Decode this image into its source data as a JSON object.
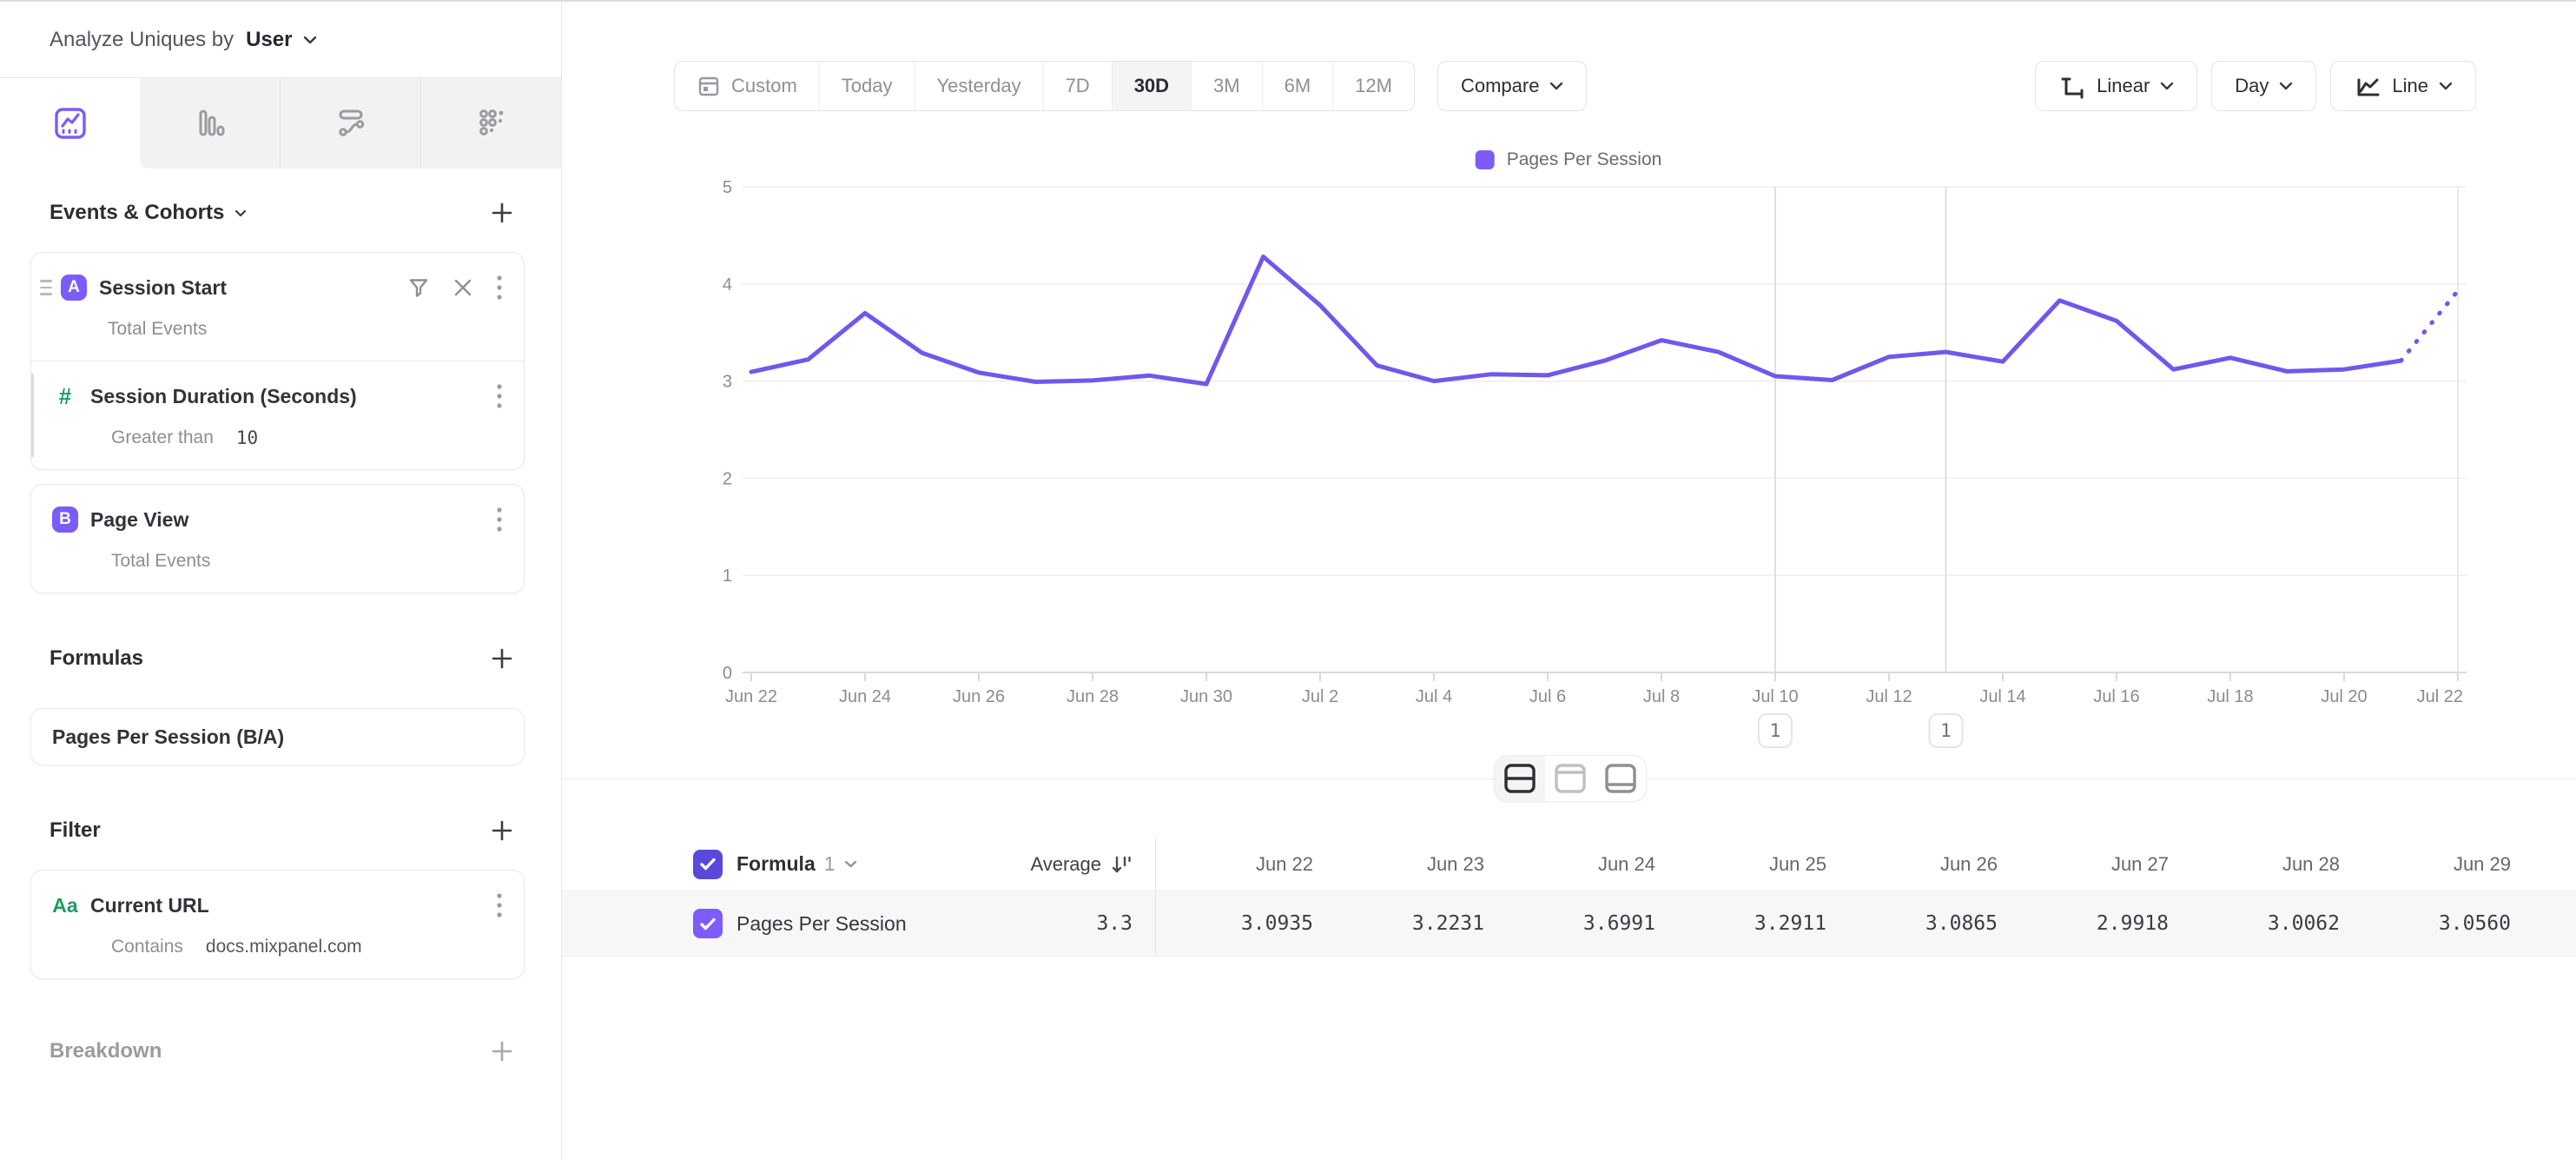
{
  "header": {
    "prefix": "Analyze Uniques by",
    "selector": "User"
  },
  "sidebar": {
    "sections": {
      "events": {
        "title": "Events & Cohorts"
      },
      "formulas": {
        "title": "Formulas"
      },
      "filter": {
        "title": "Filter"
      },
      "breakdown": {
        "title": "Breakdown"
      }
    },
    "event_items": [
      {
        "badge": "A",
        "title": "Session Start",
        "subtitle": "Total Events"
      },
      {
        "badge": "#",
        "title": "Session Duration (Seconds)",
        "operator": "Greater than",
        "operand": "10"
      },
      {
        "badge": "B",
        "title": "Page View",
        "subtitle": "Total Events"
      }
    ],
    "formula_items": [
      {
        "title": "Pages Per Session (B/A)"
      }
    ],
    "filter_items": [
      {
        "badge": "Aa",
        "title": "Current URL",
        "operator": "Contains",
        "operand": "docs.mixpanel.com"
      }
    ]
  },
  "toolbar": {
    "date_ranges": [
      "Custom",
      "Today",
      "Yesterday",
      "7D",
      "30D",
      "3M",
      "6M",
      "12M"
    ],
    "active_range": "30D",
    "compare_label": "Compare",
    "scale_label": "Linear",
    "interval_label": "Day",
    "chart_type_label": "Line"
  },
  "chart_data": {
    "type": "line",
    "legend": [
      "Pages Per Session"
    ],
    "legend_position": "top-center",
    "grid": "horizontal",
    "ylim": [
      0,
      5
    ],
    "yticks": [
      0,
      1,
      2,
      3,
      4,
      5
    ],
    "x": [
      "Jun 22",
      "Jun 23",
      "Jun 24",
      "Jun 25",
      "Jun 26",
      "Jun 27",
      "Jun 28",
      "Jun 29",
      "Jun 30",
      "Jul 1",
      "Jul 2",
      "Jul 3",
      "Jul 4",
      "Jul 5",
      "Jul 6",
      "Jul 7",
      "Jul 8",
      "Jul 9",
      "Jul 10",
      "Jul 11",
      "Jul 12",
      "Jul 13",
      "Jul 14",
      "Jul 15",
      "Jul 16",
      "Jul 17",
      "Jul 18",
      "Jul 19",
      "Jul 20",
      "Jul 21",
      "Jul 22"
    ],
    "x_tick_labels": [
      "Jun 22",
      "Jun 24",
      "Jun 26",
      "Jun 28",
      "Jun 30",
      "Jul 2",
      "Jul 4",
      "Jul 6",
      "Jul 8",
      "Jul 10",
      "Jul 12",
      "Jul 14",
      "Jul 16",
      "Jul 18",
      "Jul 20",
      "Jul 22"
    ],
    "series": [
      {
        "name": "Pages Per Session",
        "color": "#6f58ee",
        "values": [
          3.0935,
          3.2231,
          3.6991,
          3.2911,
          3.0865,
          2.9918,
          3.0062,
          3.056,
          2.97,
          4.28,
          3.78,
          3.16,
          3.0,
          3.07,
          3.06,
          3.21,
          3.42,
          3.3,
          3.05,
          3.01,
          3.25,
          3.3,
          3.2,
          3.83,
          3.62,
          3.12,
          3.24,
          3.1,
          3.12,
          3.21,
          3.93
        ],
        "last_segment_dotted": true
      }
    ],
    "annotations": [
      {
        "x": "Jul 10",
        "label": "1"
      },
      {
        "x": "Jul 13",
        "label": "1"
      }
    ]
  },
  "table": {
    "group_label": "Formula",
    "group_index": "1",
    "average_label": "Average",
    "columns": [
      "Jun 22",
      "Jun 23",
      "Jun 24",
      "Jun 25",
      "Jun 26",
      "Jun 27",
      "Jun 28",
      "Jun 29"
    ],
    "rows": [
      {
        "checked": true,
        "name": "Pages Per Session",
        "average": "3.3",
        "values": [
          "3.0935",
          "3.2231",
          "3.6991",
          "3.2911",
          "3.0865",
          "2.9918",
          "3.0062",
          "3.0560"
        ]
      }
    ]
  },
  "colors": {
    "accent_purple": "#7b5cfa",
    "series_line": "#6f58ee",
    "legend_swatch": "#7d5bf7",
    "checkbox_header": "#5a48dd",
    "checkbox_row": "#7e5bfb",
    "icon_green": "#1f9d63",
    "grid_line": "#ededef",
    "table_stripe": "#f7f7f8"
  }
}
